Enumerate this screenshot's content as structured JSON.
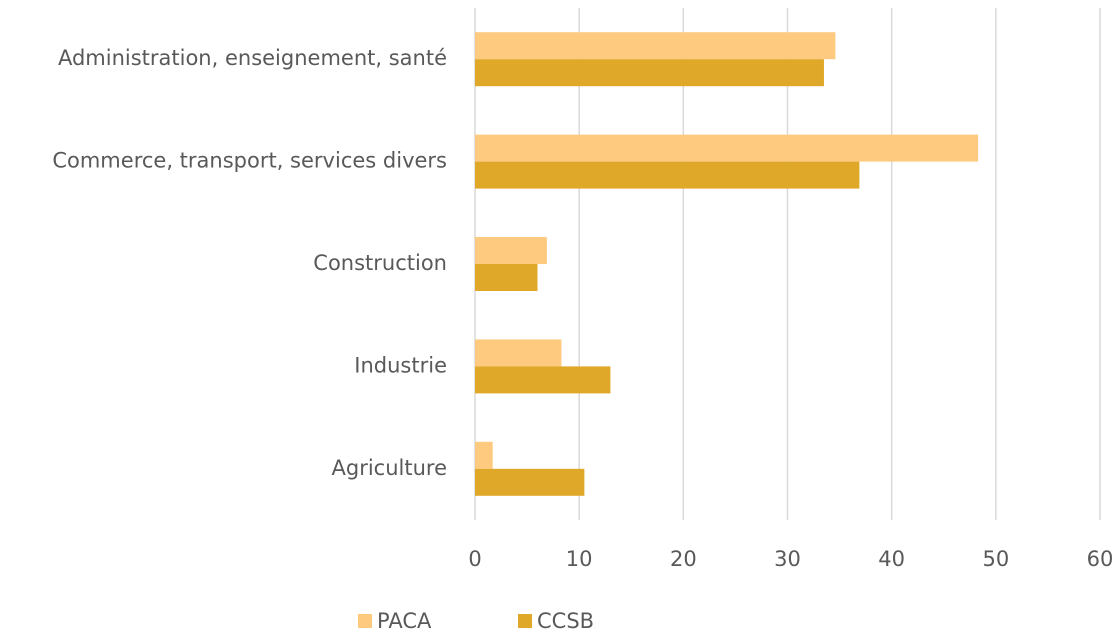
{
  "chart_data": {
    "type": "hbar",
    "categories": [
      "Administration, enseignement, santé",
      "Commerce, transport, services divers",
      "Construction",
      "Industrie",
      "Agriculture"
    ],
    "series": [
      {
        "name": "PACA",
        "color": "#fdca7f",
        "values": [
          34.6,
          48.3,
          6.9,
          8.3,
          1.7
        ]
      },
      {
        "name": "CCSB",
        "color": "#e0a828",
        "values": [
          33.5,
          36.9,
          6.0,
          13.0,
          10.5
        ]
      }
    ],
    "xlim": [
      0,
      60
    ],
    "xticks": [
      0,
      10,
      20,
      30,
      40,
      50,
      60
    ],
    "grid": true,
    "legend": "bottom"
  }
}
